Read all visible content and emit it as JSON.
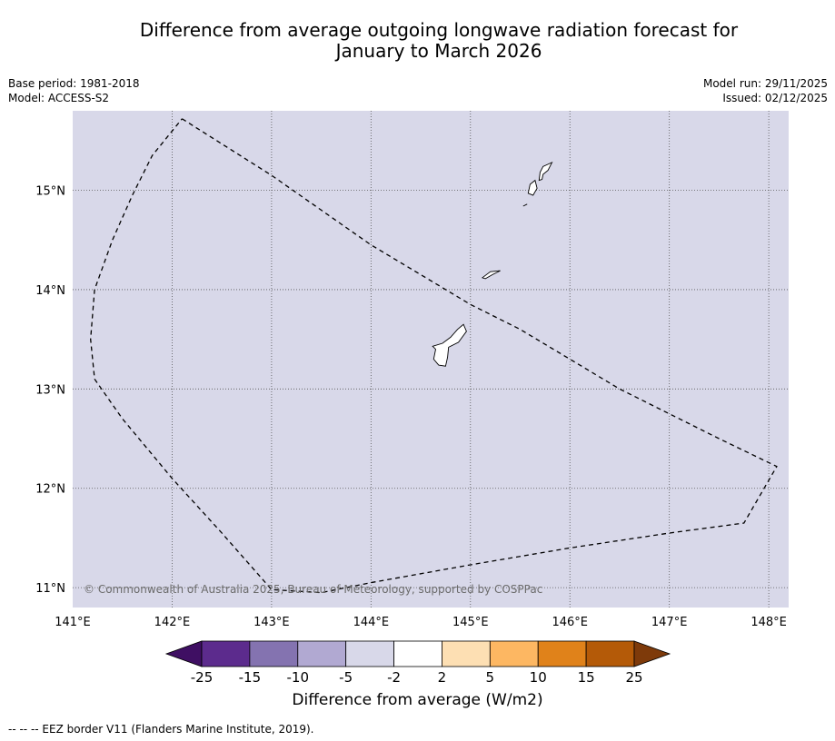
{
  "title_line1": "Difference from average outgoing longwave radiation forecast for",
  "title_line2": "January to March 2026",
  "base_period": "Base period: 1981-2018",
  "model": "Model: ACCESS-S2",
  "model_run": "Model run: 29/11/2025",
  "issued": "Issued: 02/12/2025",
  "copyright": "© Commonwealth of Australia 2025, Bureau of Meteorology, supported by COSPPac",
  "footnote": "--  --  -- EEZ border V11 (Flanders Marine Institute, 2019).",
  "chart_data": {
    "type": "map",
    "lon_range": [
      141.0,
      148.2
    ],
    "lat_range": [
      10.8,
      15.8
    ],
    "lon_ticks": [
      141,
      142,
      143,
      144,
      145,
      146,
      147,
      148
    ],
    "lon_tick_labels": [
      "141°E",
      "142°E",
      "143°E",
      "144°E",
      "145°E",
      "146°E",
      "147°E",
      "148°E"
    ],
    "lat_ticks": [
      11,
      12,
      13,
      14,
      15
    ],
    "lat_tick_labels": [
      "11°N",
      "12°N",
      "13°N",
      "14°N",
      "15°N"
    ],
    "field_value_category": "-5 to -2",
    "field_color": "#d8d8e9",
    "gridlines": true,
    "eez_border_lonlat": [
      [
        142.1,
        15.72
      ],
      [
        143.0,
        15.15
      ],
      [
        143.5,
        14.8
      ],
      [
        144.0,
        14.45
      ],
      [
        144.5,
        14.15
      ],
      [
        145.0,
        13.85
      ],
      [
        145.5,
        13.6
      ],
      [
        146.0,
        13.3
      ],
      [
        146.5,
        13.0
      ],
      [
        147.0,
        12.75
      ],
      [
        147.5,
        12.5
      ],
      [
        148.08,
        12.22
      ],
      [
        147.75,
        11.65
      ],
      [
        147.0,
        11.55
      ],
      [
        146.0,
        11.4
      ],
      [
        145.0,
        11.23
      ],
      [
        144.0,
        11.05
      ],
      [
        143.5,
        10.95
      ],
      [
        143.0,
        10.98
      ],
      [
        142.5,
        11.55
      ],
      [
        142.0,
        12.1
      ],
      [
        141.5,
        12.7
      ],
      [
        141.22,
        13.1
      ],
      [
        141.18,
        13.5
      ],
      [
        141.22,
        14.0
      ],
      [
        141.4,
        14.5
      ],
      [
        141.6,
        14.95
      ],
      [
        141.8,
        15.35
      ],
      [
        142.1,
        15.72
      ]
    ],
    "islands": [
      {
        "name": "Guam",
        "outline_lonlat": [
          [
            144.62,
            13.43
          ],
          [
            144.72,
            13.46
          ],
          [
            144.8,
            13.52
          ],
          [
            144.87,
            13.6
          ],
          [
            144.93,
            13.65
          ],
          [
            144.96,
            13.58
          ],
          [
            144.88,
            13.47
          ],
          [
            144.78,
            13.42
          ],
          [
            144.77,
            13.32
          ],
          [
            144.75,
            13.23
          ],
          [
            144.68,
            13.24
          ],
          [
            144.63,
            13.3
          ],
          [
            144.65,
            13.4
          ],
          [
            144.62,
            13.43
          ]
        ]
      },
      {
        "name": "Rota",
        "outline_lonlat": [
          [
            145.12,
            14.12
          ],
          [
            145.2,
            14.18
          ],
          [
            145.3,
            14.19
          ],
          [
            145.22,
            14.15
          ],
          [
            145.15,
            14.11
          ],
          [
            145.12,
            14.12
          ]
        ]
      },
      {
        "name": "Tinian",
        "outline_lonlat": [
          [
            145.58,
            14.97
          ],
          [
            145.6,
            15.06
          ],
          [
            145.65,
            15.1
          ],
          [
            145.67,
            15.02
          ],
          [
            145.63,
            14.95
          ],
          [
            145.58,
            14.97
          ]
        ]
      },
      {
        "name": "Saipan",
        "outline_lonlat": [
          [
            145.69,
            15.1
          ],
          [
            145.7,
            15.18
          ],
          [
            145.73,
            15.24
          ],
          [
            145.82,
            15.28
          ],
          [
            145.78,
            15.2
          ],
          [
            145.73,
            15.16
          ],
          [
            145.72,
            15.11
          ],
          [
            145.69,
            15.1
          ]
        ]
      },
      {
        "name": "Aguijan",
        "outline_lonlat": [
          [
            145.53,
            14.84
          ],
          [
            145.57,
            14.86
          ]
        ]
      }
    ],
    "colorbar": {
      "label": "Difference from average (W/m2)",
      "tick_labels": [
        "-25",
        "-15",
        "-10",
        "-5",
        "-2",
        "2",
        "5",
        "10",
        "15",
        "25"
      ],
      "colors": [
        "#3f0f63",
        "#5c2b8d",
        "#8473b0",
        "#b1a9d2",
        "#d8d8e9",
        "#ffffff",
        "#fddfb3",
        "#fdb762",
        "#e0821a",
        "#b45a08",
        "#7e3a0a"
      ],
      "extend": "both"
    }
  }
}
